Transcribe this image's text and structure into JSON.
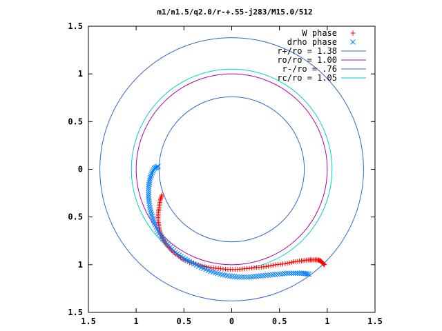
{
  "chart_data": {
    "type": "scatter",
    "title": "m1/n1.5/q2.0/r-+.55-j283/M15.0/512",
    "xlim": [
      -1.5,
      1.5
    ],
    "ylim": [
      -1.5,
      1.5
    ],
    "x_ticks": [
      -1.5,
      -1,
      -0.5,
      0,
      0.5,
      1,
      1.5
    ],
    "y_ticks": [
      -1.5,
      -1,
      -0.5,
      0,
      0.5,
      1,
      1.5
    ],
    "x_tick_labels": [
      "1.5",
      "1",
      "0.5",
      "0",
      "0.5",
      "1",
      "1.5"
    ],
    "y_tick_labels": [
      "1.5",
      "1",
      "0.5",
      "0",
      "0.5",
      "1",
      "1.5"
    ],
    "grid": false,
    "legend_position": "top-right",
    "legend": [
      {
        "label": "W phase",
        "kind": "marker",
        "marker": "plus",
        "color": "#ff0000"
      },
      {
        "label": "drho phase",
        "kind": "marker",
        "marker": "cross",
        "color": "#0080ff"
      },
      {
        "label": "r+/ro = 1.38",
        "kind": "line",
        "color": "#3366cc"
      },
      {
        "label": "ro/ro = 1.00",
        "kind": "line",
        "color": "#aa00aa"
      },
      {
        "label": "r-/ro = .76",
        "kind": "line",
        "color": "#3366cc"
      },
      {
        "label": "rc/ro = 1.05",
        "kind": "line",
        "color": "#00cccc"
      }
    ],
    "circles": [
      {
        "name": "r+/ro",
        "radius": 1.38,
        "color": "#3366cc"
      },
      {
        "name": "ro/ro",
        "radius": 1.0,
        "color": "#aa00aa"
      },
      {
        "name": "r-/ro",
        "radius": 0.76,
        "color": "#3366cc"
      },
      {
        "name": "rc/ro",
        "radius": 1.05,
        "color": "#00cccc"
      }
    ],
    "series": [
      {
        "name": "W phase",
        "marker": "plus",
        "color": "#ff0000",
        "x": [
          -0.73,
          -0.75,
          -0.76,
          -0.77,
          -0.77,
          -0.76,
          -0.75,
          -0.72,
          -0.68,
          -0.63,
          -0.57,
          -0.5,
          -0.42,
          -0.33,
          -0.24,
          -0.14,
          -0.04,
          0.06,
          0.16,
          0.26,
          0.36,
          0.46,
          0.56,
          0.65,
          0.73,
          0.8,
          0.85,
          0.9,
          0.93,
          0.95,
          0.97
        ],
        "y": [
          -0.27,
          -0.33,
          -0.4,
          -0.47,
          -0.54,
          -0.61,
          -0.67,
          -0.73,
          -0.79,
          -0.85,
          -0.9,
          -0.95,
          -0.98,
          -1.01,
          -1.03,
          -1.04,
          -1.05,
          -1.05,
          -1.04,
          -1.03,
          -1.02,
          -1.0,
          -0.99,
          -0.97,
          -0.96,
          -0.95,
          -0.95,
          -0.95,
          -0.96,
          -0.98,
          -1.0
        ]
      },
      {
        "name": "drho phase",
        "marker": "cross",
        "color": "#0080ff",
        "x": [
          -0.77,
          -0.81,
          -0.84,
          -0.86,
          -0.87,
          -0.87,
          -0.86,
          -0.84,
          -0.81,
          -0.77,
          -0.72,
          -0.66,
          -0.59,
          -0.51,
          -0.42,
          -0.32,
          -0.22,
          -0.12,
          -0.02,
          0.08,
          0.18,
          0.28,
          0.38,
          0.48,
          0.58,
          0.67,
          0.75,
          0.81
        ],
        "y": [
          0.03,
          0.01,
          -0.05,
          -0.12,
          -0.2,
          -0.29,
          -0.38,
          -0.47,
          -0.56,
          -0.65,
          -0.73,
          -0.8,
          -0.87,
          -0.93,
          -0.98,
          -1.03,
          -1.07,
          -1.1,
          -1.12,
          -1.13,
          -1.13,
          -1.12,
          -1.11,
          -1.1,
          -1.09,
          -1.09,
          -1.09,
          -1.1
        ]
      }
    ]
  }
}
